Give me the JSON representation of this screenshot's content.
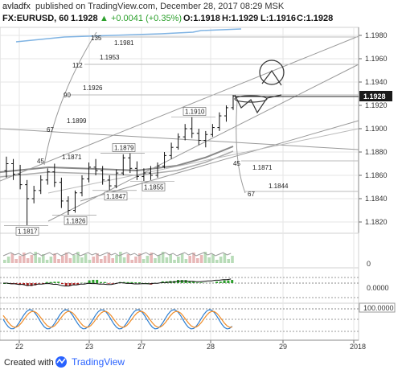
{
  "header": {
    "user": "avladfx",
    "published": "published on TradingView.com, December 28, 2017 08:29 MSK",
    "symbol": "FX:EURUSD, 60",
    "last": "1.1928",
    "change": "▲ +0.0041 (+0.35%)",
    "o": "O:1.1918",
    "h": "H:1.1929",
    "l": "L:1.1916",
    "c": "C:1.1928"
  },
  "footer": {
    "created_with": "Created with",
    "brand": "TradingView"
  },
  "colors": {
    "up": "#2ca02c",
    "down": "#b22222",
    "price_badge": "#1a1a1a",
    "blue_line": "#2f7fd1",
    "orange_line": "#f08c28",
    "grid": "#e6e6e6"
  },
  "chart_data": {
    "type": "candlestick",
    "x_ticks": [
      "22",
      "23",
      "27",
      "28",
      "29",
      "2018"
    ],
    "price_axis_ticks": [
      "1.1980",
      "1.1960",
      "1.1940",
      "1.1920",
      "1.1900",
      "1.1880",
      "1.1860",
      "1.1840",
      "1.1820"
    ],
    "last_price_label": "1.1928",
    "price_labels": [
      {
        "label": "1.1817",
        "value": 1.1817
      },
      {
        "label": "1.1826",
        "value": 1.1826
      },
      {
        "label": "1.1847",
        "value": 1.1847
      },
      {
        "label": "1.1855",
        "value": 1.1855
      },
      {
        "label": "1.1879",
        "value": 1.1879
      },
      {
        "label": "1.1910",
        "value": 1.191
      }
    ],
    "fib_levels_left": [
      {
        "count": "135",
        "label": "1.1981"
      },
      {
        "count": "112",
        "label": "1.1953"
      },
      {
        "count": "90",
        "label": "1.1926"
      },
      {
        "count": "67",
        "label": "1.1899"
      },
      {
        "count": "45",
        "label": "1.1871"
      }
    ],
    "fib_levels_right": [
      {
        "count": "45",
        "label": "1.1871"
      },
      {
        "count": "67",
        "label": "1.1844"
      }
    ],
    "volume_axis_ticks": [
      "0"
    ],
    "osc1_axis_ticks": [
      "0.0000"
    ],
    "osc2_axis_ticks": [
      "100.0000"
    ],
    "ohlc": [
      [
        1.1864,
        1.1876,
        1.1858,
        1.187
      ],
      [
        1.187,
        1.1874,
        1.1856,
        1.1861
      ],
      [
        1.1861,
        1.1869,
        1.1848,
        1.1852
      ],
      [
        1.1852,
        1.1856,
        1.1817,
        1.184
      ],
      [
        1.184,
        1.1851,
        1.1836,
        1.1847
      ],
      [
        1.1847,
        1.186,
        1.1844,
        1.1856
      ],
      [
        1.1856,
        1.1866,
        1.1852,
        1.1863
      ],
      [
        1.1863,
        1.187,
        1.185,
        1.1854
      ],
      [
        1.1854,
        1.1858,
        1.1832,
        1.1838
      ],
      [
        1.1838,
        1.1842,
        1.1826,
        1.183
      ],
      [
        1.183,
        1.1847,
        1.1828,
        1.1845
      ],
      [
        1.1845,
        1.186,
        1.1842,
        1.1857
      ],
      [
        1.1857,
        1.1871,
        1.1854,
        1.1867
      ],
      [
        1.1867,
        1.1874,
        1.186,
        1.1864
      ],
      [
        1.1864,
        1.1868,
        1.1852,
        1.1856
      ],
      [
        1.1856,
        1.186,
        1.1847,
        1.1851
      ],
      [
        1.1851,
        1.1865,
        1.1849,
        1.1862
      ],
      [
        1.1862,
        1.1878,
        1.186,
        1.1875
      ],
      [
        1.1875,
        1.1879,
        1.1862,
        1.1866
      ],
      [
        1.1866,
        1.1872,
        1.1856,
        1.1859
      ],
      [
        1.1859,
        1.1866,
        1.1855,
        1.1862
      ],
      [
        1.1862,
        1.1868,
        1.1856,
        1.186
      ],
      [
        1.186,
        1.1871,
        1.1858,
        1.1868
      ],
      [
        1.1868,
        1.188,
        1.1866,
        1.1877
      ],
      [
        1.1877,
        1.1888,
        1.1874,
        1.1884
      ],
      [
        1.1884,
        1.1896,
        1.1882,
        1.1893
      ],
      [
        1.1893,
        1.1904,
        1.189,
        1.19
      ],
      [
        1.19,
        1.191,
        1.1892,
        1.1896
      ],
      [
        1.1896,
        1.19,
        1.1886,
        1.189
      ],
      [
        1.189,
        1.1898,
        1.1884,
        1.1895
      ],
      [
        1.1895,
        1.1904,
        1.1893,
        1.1901
      ],
      [
        1.1901,
        1.1914,
        1.1898,
        1.1911
      ],
      [
        1.1911,
        1.192,
        1.1906,
        1.1918
      ],
      [
        1.1918,
        1.1929,
        1.1916,
        1.1928
      ]
    ]
  }
}
